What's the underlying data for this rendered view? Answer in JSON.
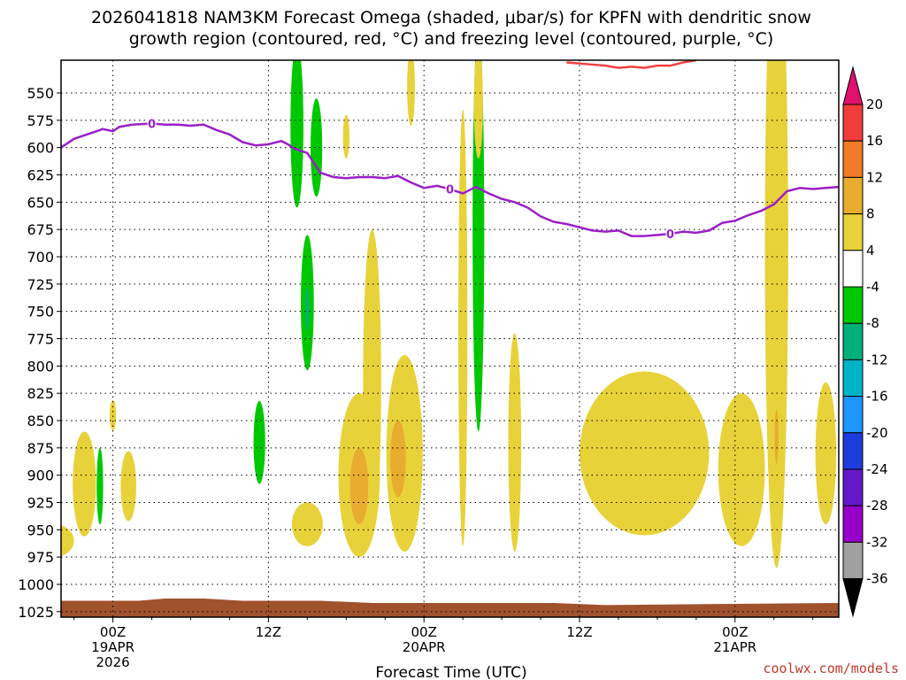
{
  "chart_data": {
    "type": "contour-heatmap",
    "title_line1": "2026041818 NAM3KM Forecast Omega (shaded, μbar/s) for KPFN with dendritic snow",
    "title_line2": "growth region (contoured, red, °C) and freezing level (contoured, purple, °C)",
    "xlabel": "Forecast Time (UTC)",
    "credit": "coolwx.com/models",
    "xlim_hours": [
      -4,
      56
    ],
    "ylim_hpa": [
      1030,
      520
    ],
    "y_ticks": [
      550,
      575,
      600,
      625,
      650,
      675,
      700,
      725,
      750,
      775,
      800,
      825,
      850,
      875,
      900,
      925,
      950,
      975,
      1000,
      1025
    ],
    "x_ticks": [
      {
        "hour": 0,
        "lines": [
          "00Z",
          "19APR",
          "2026"
        ]
      },
      {
        "hour": 12,
        "lines": [
          "12Z"
        ]
      },
      {
        "hour": 24,
        "lines": [
          "00Z",
          "20APR"
        ]
      },
      {
        "hour": 36,
        "lines": [
          "12Z"
        ]
      },
      {
        "hour": 48,
        "lines": [
          "00Z",
          "21APR"
        ]
      }
    ],
    "colorbar": {
      "labels": [
        "20",
        "16",
        "12",
        "8",
        "4",
        "-4",
        "-8",
        "-12",
        "-16",
        "-20",
        "-24",
        "-28",
        "-32",
        "-36"
      ],
      "colors": [
        "#f03c3c",
        "#f07a28",
        "#e8ac2e",
        "#e8d23a",
        "#ffffff",
        "#00c800",
        "#00b07a",
        "#00b4c8",
        "#1e96ff",
        "#1e3cdc",
        "#6418c8",
        "#9600c8",
        "#a0a0a0"
      ],
      "top_color": "#e0106e",
      "bottom_color": "#000000"
    },
    "freezing_level": {
      "color": "#9b1fc8",
      "label": "0",
      "points": [
        [
          -4,
          600
        ],
        [
          -3,
          592
        ],
        [
          -2,
          588
        ],
        [
          -1,
          584
        ],
        [
          -0.8,
          583
        ],
        [
          0,
          585
        ],
        [
          0.5,
          581
        ],
        [
          1.5,
          579
        ],
        [
          3,
          578
        ],
        [
          4,
          579
        ],
        [
          5,
          579
        ],
        [
          6,
          580
        ],
        [
          7,
          579
        ],
        [
          8,
          584
        ],
        [
          9,
          588
        ],
        [
          10,
          595
        ],
        [
          11,
          598
        ],
        [
          12,
          597
        ],
        [
          13,
          594
        ],
        [
          13.5,
          597
        ],
        [
          14,
          601
        ],
        [
          15,
          605
        ],
        [
          16,
          623
        ],
        [
          17,
          627
        ],
        [
          18,
          628
        ],
        [
          19,
          627
        ],
        [
          20,
          627
        ],
        [
          21,
          628
        ],
        [
          22,
          626
        ],
        [
          23,
          632
        ],
        [
          24,
          637
        ],
        [
          25,
          635
        ],
        [
          26,
          638
        ],
        [
          27,
          642
        ],
        [
          28,
          636
        ],
        [
          29,
          642
        ],
        [
          30,
          647
        ],
        [
          31,
          650
        ],
        [
          32,
          655
        ],
        [
          33,
          663
        ],
        [
          34,
          668
        ],
        [
          35,
          670
        ],
        [
          36,
          673
        ],
        [
          37,
          676
        ],
        [
          38,
          677
        ],
        [
          39,
          676
        ],
        [
          40,
          681
        ],
        [
          41,
          681
        ],
        [
          42,
          680
        ],
        [
          43,
          679
        ],
        [
          44,
          677
        ],
        [
          45,
          678
        ],
        [
          46,
          676
        ],
        [
          47,
          669
        ],
        [
          48,
          667
        ],
        [
          49,
          662
        ],
        [
          50,
          658
        ],
        [
          51,
          652
        ],
        [
          52,
          640
        ],
        [
          53,
          637
        ],
        [
          54,
          638
        ],
        [
          55,
          637
        ],
        [
          56,
          636
        ]
      ],
      "label_hours": [
        3,
        26,
        43
      ]
    },
    "dgz_contour": {
      "color": "#f04040",
      "points": [
        [
          35,
          522
        ],
        [
          37,
          524
        ],
        [
          38,
          525
        ],
        [
          39,
          527
        ],
        [
          40,
          526
        ],
        [
          41,
          527
        ],
        [
          42,
          525
        ],
        [
          43,
          525
        ],
        [
          44,
          522
        ],
        [
          45,
          520
        ]
      ]
    },
    "omega_regions": [
      {
        "value": 4,
        "center": [
          -4.5,
          960
        ],
        "half": [
          1.5,
          15
        ]
      },
      {
        "value": 4,
        "center": [
          -2.2,
          908
        ],
        "half": [
          0.9,
          48
        ]
      },
      {
        "value": -4,
        "center": [
          -1.0,
          910
        ],
        "half": [
          0.25,
          35
        ]
      },
      {
        "value": 4,
        "center": [
          1.2,
          910
        ],
        "half": [
          0.6,
          32
        ]
      },
      {
        "value": 4,
        "center": [
          0.0,
          845
        ],
        "half": [
          0.25,
          14
        ]
      },
      {
        "value": -4,
        "center": [
          11.3,
          870
        ],
        "half": [
          0.45,
          38
        ]
      },
      {
        "value": -4,
        "center": [
          14.2,
          580
        ],
        "half": [
          0.5,
          75
        ]
      },
      {
        "value": -4,
        "center": [
          15.7,
          600
        ],
        "half": [
          0.45,
          45
        ]
      },
      {
        "value": -4,
        "center": [
          15.0,
          742
        ],
        "half": [
          0.5,
          62
        ]
      },
      {
        "value": -8,
        "center": [
          15.0,
          748
        ],
        "half": [
          0.15,
          20
        ]
      },
      {
        "value": 4,
        "center": [
          18.0,
          590
        ],
        "half": [
          0.25,
          20
        ]
      },
      {
        "value": 4,
        "center": [
          15.0,
          945
        ],
        "half": [
          1.2,
          20
        ]
      },
      {
        "value": 4,
        "center": [
          20.0,
          815
        ],
        "half": [
          0.7,
          140
        ]
      },
      {
        "value": 4,
        "center": [
          19.0,
          900
        ],
        "half": [
          1.6,
          75
        ]
      },
      {
        "value": 8,
        "center": [
          19.0,
          910
        ],
        "half": [
          0.7,
          35
        ]
      },
      {
        "value": 4,
        "center": [
          22.5,
          880
        ],
        "half": [
          1.4,
          90
        ]
      },
      {
        "value": 8,
        "center": [
          22.0,
          885
        ],
        "half": [
          0.6,
          35
        ]
      },
      {
        "value": 4,
        "center": [
          23.0,
          545
        ],
        "half": [
          0.3,
          35
        ]
      },
      {
        "value": 4,
        "center": [
          27.0,
          765
        ],
        "half": [
          0.35,
          200
        ]
      },
      {
        "value": -4,
        "center": [
          28.2,
          675
        ],
        "half": [
          0.45,
          185
        ]
      },
      {
        "value": 4,
        "center": [
          28.2,
          560
        ],
        "half": [
          0.35,
          50
        ]
      },
      {
        "value": 4,
        "center": [
          31.0,
          870
        ],
        "half": [
          0.5,
          100
        ]
      },
      {
        "value": 4,
        "center": [
          41.0,
          880
        ],
        "half": [
          5.0,
          75
        ]
      },
      {
        "value": 4,
        "center": [
          48.5,
          895
        ],
        "half": [
          1.8,
          70
        ]
      },
      {
        "value": 4,
        "center": [
          51.2,
          690
        ],
        "half": [
          0.9,
          295
        ]
      },
      {
        "value": 8,
        "center": [
          51.2,
          865
        ],
        "half": [
          0.15,
          25
        ]
      },
      {
        "value": 4,
        "center": [
          55.0,
          880
        ],
        "half": [
          0.8,
          65
        ]
      }
    ],
    "surface": {
      "color": "#a0522d",
      "points": [
        [
          -4,
          1015
        ],
        [
          2,
          1015
        ],
        [
          4,
          1013
        ],
        [
          7,
          1013
        ],
        [
          10,
          1015
        ],
        [
          16,
          1015
        ],
        [
          20,
          1017
        ],
        [
          34,
          1017
        ],
        [
          38,
          1019
        ],
        [
          46,
          1018
        ],
        [
          56,
          1017
        ]
      ]
    }
  }
}
